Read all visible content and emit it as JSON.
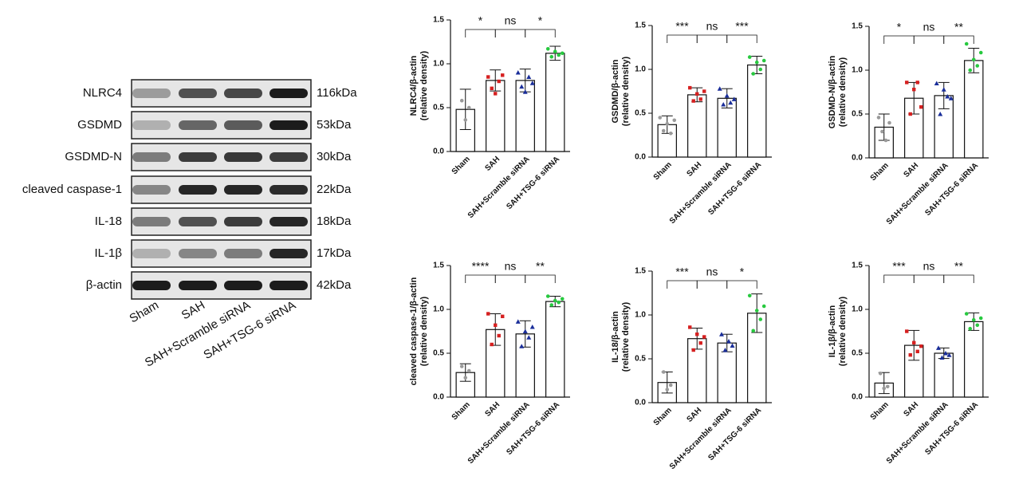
{
  "blot": {
    "proteins": [
      "NLRC4",
      "GSDMD",
      "GSDMD-N",
      "cleaved caspase-1",
      "IL-18",
      "IL-1β",
      "β-actin"
    ],
    "sizes": [
      "116kDa",
      "53kDa",
      "30kDa",
      "22kDa",
      "18kDa",
      "17kDa",
      "42kDa"
    ],
    "groups": [
      "Sham",
      "SAH",
      "SAH+Scramble siRNA",
      "SAH+TSG-6 siRNA"
    ]
  },
  "chart_data": [
    {
      "type": "bar",
      "ylabel": [
        "NLRC4/β-actin",
        "(relative density)"
      ],
      "categories": [
        "Sham",
        "SAH",
        "SAH+Scramble siRNA",
        "SAH+TSG-6 siRNA"
      ],
      "values": [
        0.48,
        0.81,
        0.81,
        1.12
      ],
      "errors": [
        0.23,
        0.12,
        0.13,
        0.08
      ],
      "points": [
        [
          0.58,
          0.36,
          0.5
        ],
        [
          0.85,
          0.72,
          0.66,
          0.8,
          0.87
        ],
        [
          0.9,
          0.74,
          0.68,
          0.85,
          0.78
        ],
        [
          1.17,
          1.08,
          1.14,
          1.1,
          1.12
        ]
      ],
      "point_colors": [
        "#9a9a9a",
        "#d62020",
        "#1a2e9a",
        "#27c93f"
      ],
      "significance": [
        "*",
        "ns",
        "*"
      ],
      "ylim": [
        0,
        1.5
      ],
      "yticks": [
        {
          "value": 0,
          "label": "0.0"
        },
        {
          "value": 0.5,
          "label": "0.5"
        },
        {
          "value": 1,
          "label": "1.0"
        },
        {
          "value": 1.5,
          "label": "1.5"
        }
      ]
    },
    {
      "type": "bar",
      "ylabel": [
        "GSDMD/β-actin",
        "(relative density)"
      ],
      "categories": [
        "Sham",
        "SAH",
        "SAH+Scramble siRNA",
        "SAH+TSG-6 siRNA"
      ],
      "values": [
        0.37,
        0.71,
        0.67,
        1.05
      ],
      "errors": [
        0.1,
        0.08,
        0.11,
        0.1
      ],
      "points": [
        [
          0.45,
          0.3,
          0.38,
          0.27,
          0.42
        ],
        [
          0.79,
          0.64,
          0.72,
          0.66,
          0.75
        ],
        [
          0.78,
          0.6,
          0.7,
          0.62,
          0.66
        ],
        [
          1.14,
          0.95,
          1.08,
          1.0,
          1.1
        ]
      ],
      "point_colors": [
        "#9a9a9a",
        "#d62020",
        "#1a2e9a",
        "#27c93f"
      ],
      "significance": [
        "***",
        "ns",
        "***"
      ],
      "ylim": [
        0,
        1.5
      ],
      "yticks": [
        {
          "value": 0,
          "label": "0.0"
        },
        {
          "value": 0.5,
          "label": "0.5"
        },
        {
          "value": 1,
          "label": "1.0"
        },
        {
          "value": 1.5,
          "label": "1.5"
        }
      ]
    },
    {
      "type": "bar",
      "ylabel": [
        "GSDMD-N/β-actin",
        "(relative density)"
      ],
      "categories": [
        "Sham",
        "SAH",
        "SAH+Scramble siRNA",
        "SAH+TSG-6 siRNA"
      ],
      "values": [
        0.35,
        0.68,
        0.71,
        1.11
      ],
      "errors": [
        0.15,
        0.18,
        0.15,
        0.14
      ],
      "points": [
        [
          0.46,
          0.3,
          0.2,
          0.4
        ],
        [
          0.86,
          0.5,
          0.78,
          0.86,
          0.58
        ],
        [
          0.85,
          0.5,
          0.78,
          0.7,
          0.68
        ],
        [
          1.3,
          1.0,
          1.12,
          1.05,
          1.2
        ]
      ],
      "point_colors": [
        "#9a9a9a",
        "#d62020",
        "#1a2e9a",
        "#27c93f"
      ],
      "significance": [
        "*",
        "ns",
        "**"
      ],
      "ylim": [
        0,
        1.5
      ],
      "yticks": [
        {
          "value": 0,
          "label": "0.0"
        },
        {
          "value": 0.5,
          "label": "0.5"
        },
        {
          "value": 1,
          "label": "1.0"
        },
        {
          "value": 1.5,
          "label": "1.5"
        }
      ]
    },
    {
      "type": "bar",
      "ylabel": [
        "cleaved caspase-1/β-actin",
        "(relative density)"
      ],
      "categories": [
        "Sham",
        "SAH",
        "SAH+Scramble siRNA",
        "SAH+TSG-6 siRNA"
      ],
      "values": [
        0.28,
        0.77,
        0.72,
        1.09
      ],
      "errors": [
        0.1,
        0.18,
        0.15,
        0.06
      ],
      "points": [
        [
          0.35,
          0.22,
          0.3
        ],
        [
          0.95,
          0.6,
          0.82,
          0.7,
          0.92
        ],
        [
          0.86,
          0.58,
          0.75,
          0.68,
          0.8
        ],
        [
          1.15,
          1.05,
          1.1,
          1.08,
          1.12
        ]
      ],
      "point_colors": [
        "#9a9a9a",
        "#d62020",
        "#1a2e9a",
        "#27c93f"
      ],
      "significance": [
        "****",
        "ns",
        "**"
      ],
      "ylim": [
        0,
        1.5
      ],
      "yticks": [
        {
          "value": 0,
          "label": "0.0"
        },
        {
          "value": 0.5,
          "label": "0.5"
        },
        {
          "value": 1,
          "label": "1.0"
        },
        {
          "value": 1.5,
          "label": "1.5"
        }
      ]
    },
    {
      "type": "bar",
      "ylabel": [
        "IL-18/β-actin",
        "(relative density)"
      ],
      "categories": [
        "Sham",
        "SAH",
        "SAH+Scramble siRNA",
        "SAH+TSG-6 siRNA"
      ],
      "values": [
        0.23,
        0.73,
        0.68,
        1.02
      ],
      "errors": [
        0.12,
        0.12,
        0.1,
        0.22
      ],
      "points": [
        [
          0.35,
          0.15,
          0.2
        ],
        [
          0.86,
          0.6,
          0.78,
          0.68,
          0.75
        ],
        [
          0.78,
          0.6,
          0.7,
          0.65
        ],
        [
          1.22,
          0.82,
          1.05,
          0.95,
          1.1
        ]
      ],
      "point_colors": [
        "#9a9a9a",
        "#d62020",
        "#1a2e9a",
        "#27c93f"
      ],
      "significance": [
        "***",
        "ns",
        "*"
      ],
      "ylim": [
        0,
        1.5
      ],
      "yticks": [
        {
          "value": 0,
          "label": "0.0"
        },
        {
          "value": 0.5,
          "label": "0.5"
        },
        {
          "value": 1,
          "label": "1.0"
        },
        {
          "value": 1.5,
          "label": "1.5"
        }
      ]
    },
    {
      "type": "bar",
      "ylabel": [
        "IL-1β/β-actin",
        "(relative density)"
      ],
      "categories": [
        "Sham",
        "SAH",
        "SAH+Scramble siRNA",
        "SAH+TSG-6 siRNA"
      ],
      "values": [
        0.16,
        0.59,
        0.5,
        0.86
      ],
      "errors": [
        0.12,
        0.17,
        0.06,
        0.1
      ],
      "points": [
        [
          0.27,
          0.1,
          0.12
        ],
        [
          0.75,
          0.48,
          0.62,
          0.52,
          0.58
        ],
        [
          0.56,
          0.45,
          0.5,
          0.48
        ],
        [
          0.95,
          0.78,
          0.88,
          0.82,
          0.9
        ]
      ],
      "point_colors": [
        "#9a9a9a",
        "#d62020",
        "#1a2e9a",
        "#27c93f"
      ],
      "significance": [
        "***",
        "ns",
        "**"
      ],
      "ylim": [
        0,
        1.5
      ],
      "yticks": [
        {
          "value": 0,
          "label": "0.0"
        },
        {
          "value": 0.5,
          "label": "0.5"
        },
        {
          "value": 1,
          "label": "1.0"
        },
        {
          "value": 1.5,
          "label": "1.5"
        }
      ]
    }
  ]
}
